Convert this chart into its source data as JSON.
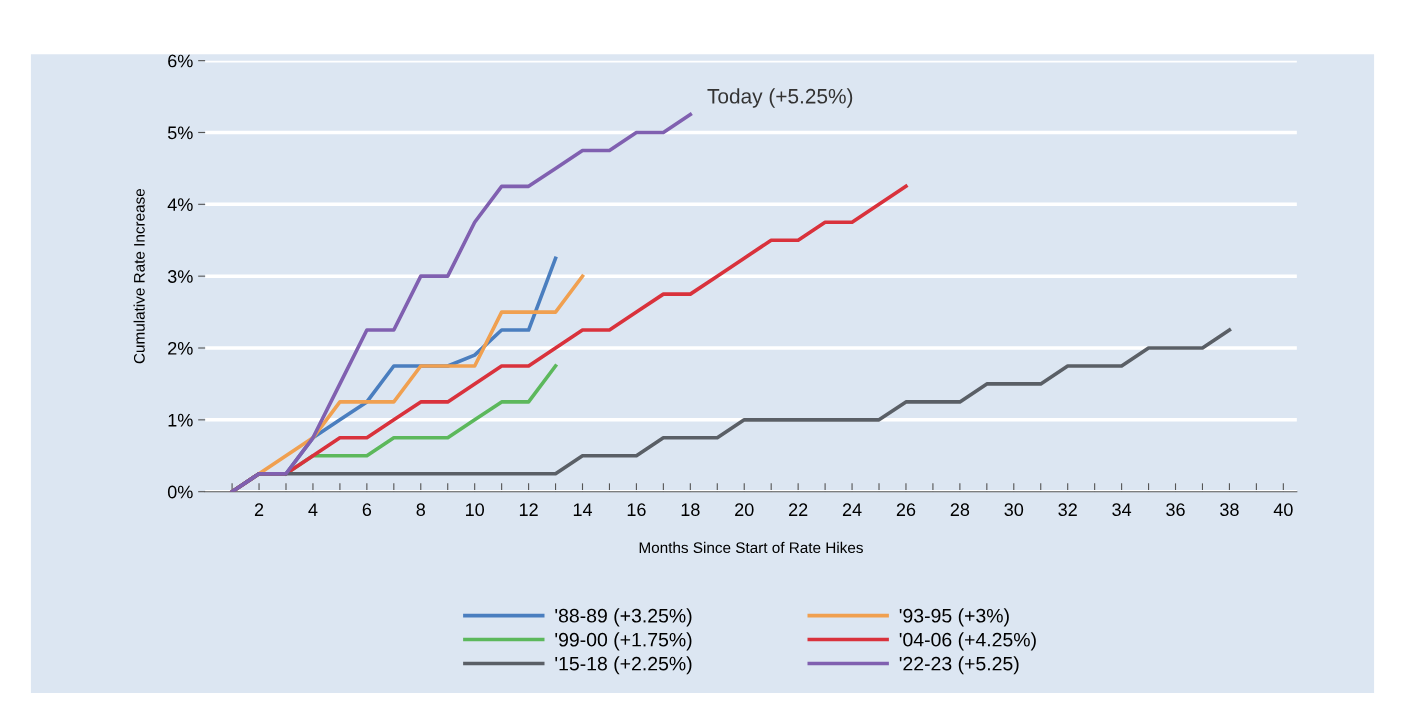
{
  "chart_data": {
    "type": "line",
    "xlabel": "Months Since Start of Rate Hikes",
    "ylabel": "Cumulative Rate Increase",
    "x": [
      1,
      2,
      3,
      4,
      5,
      6,
      7,
      8,
      9,
      10,
      11,
      12,
      13,
      14,
      15,
      16,
      17,
      18,
      19,
      20,
      21,
      22,
      23,
      24,
      25,
      26,
      27,
      28,
      29,
      30,
      31,
      32,
      33,
      34,
      35,
      36,
      37,
      38
    ],
    "series": [
      {
        "name": "'88-89 (+3.25%)",
        "color": "#4a7ebf",
        "values": [
          0,
          0.25,
          0.25,
          0.75,
          1.0,
          1.25,
          1.75,
          1.75,
          1.75,
          1.9,
          2.25,
          2.25,
          3.25,
          null,
          null,
          null,
          null,
          null,
          null,
          null,
          null,
          null,
          null,
          null,
          null,
          null,
          null,
          null,
          null,
          null,
          null,
          null,
          null,
          null,
          null,
          null,
          null,
          null
        ]
      },
      {
        "name": "'93-95 (+3%)",
        "color": "#f0a050",
        "values": [
          0,
          0.25,
          0.5,
          0.75,
          1.25,
          1.25,
          1.25,
          1.75,
          1.75,
          1.75,
          2.5,
          2.5,
          2.5,
          3.0,
          null,
          null,
          null,
          null,
          null,
          null,
          null,
          null,
          null,
          null,
          null,
          null,
          null,
          null,
          null,
          null,
          null,
          null,
          null,
          null,
          null,
          null,
          null,
          null
        ]
      },
      {
        "name": "'99-00 (+1.75%)",
        "color": "#5cb85c",
        "values": [
          null,
          null,
          0.25,
          0.5,
          0.5,
          0.5,
          0.75,
          0.75,
          0.75,
          1.0,
          1.25,
          1.25,
          1.75,
          null,
          null,
          null,
          null,
          null,
          null,
          null,
          null,
          null,
          null,
          null,
          null,
          null,
          null,
          null,
          null,
          null,
          null,
          null,
          null,
          null,
          null,
          null,
          null,
          null
        ]
      },
      {
        "name": "'04-06 (+4.25%)",
        "color": "#d9323c",
        "values": [
          0,
          0.25,
          0.25,
          0.5,
          0.75,
          0.75,
          1.0,
          1.25,
          1.25,
          1.5,
          1.75,
          1.75,
          2.0,
          2.25,
          2.25,
          2.5,
          2.75,
          2.75,
          3.0,
          3.25,
          3.5,
          3.5,
          3.75,
          3.75,
          4.0,
          4.25,
          null,
          null,
          null,
          null,
          null,
          null,
          null,
          null,
          null,
          null,
          null,
          null
        ]
      },
      {
        "name": "'15-18 (+2.25%)",
        "color": "#5a5f66",
        "values": [
          0,
          0.25,
          0.25,
          0.25,
          0.25,
          0.25,
          0.25,
          0.25,
          0.25,
          0.25,
          0.25,
          0.25,
          0.25,
          0.5,
          0.5,
          0.5,
          0.75,
          0.75,
          0.75,
          1.0,
          1.0,
          1.0,
          1.0,
          1.0,
          1.0,
          1.25,
          1.25,
          1.25,
          1.5,
          1.5,
          1.5,
          1.75,
          1.75,
          1.75,
          2.0,
          2.0,
          2.0,
          2.25
        ]
      },
      {
        "name": "'22-23 (+5.25)",
        "color": "#8060b0",
        "values": [
          0,
          0.25,
          0.25,
          0.75,
          1.5,
          2.25,
          2.25,
          3.0,
          3.0,
          3.75,
          4.25,
          4.25,
          4.5,
          4.75,
          4.75,
          5.0,
          5.0,
          5.25,
          null,
          null,
          null,
          null,
          null,
          null,
          null,
          null,
          null,
          null,
          null,
          null,
          null,
          null,
          null,
          null,
          null,
          null,
          null,
          null
        ]
      }
    ],
    "annotations": [
      {
        "text": "Today (+5.25%)",
        "x": 18,
        "y": 5.25
      }
    ],
    "xlim": [
      0,
      40.5
    ],
    "xticks": [
      {
        "value": 1,
        "label": null
      },
      2,
      {
        "value": 3,
        "label": null
      },
      4,
      {
        "value": 5,
        "label": null
      },
      6,
      {
        "value": 7,
        "label": null
      },
      8,
      {
        "value": 9,
        "label": null
      },
      10,
      {
        "value": 11,
        "label": null
      },
      12,
      {
        "value": 13,
        "label": null
      },
      14,
      {
        "value": 15,
        "label": null
      },
      16,
      {
        "value": 17,
        "label": null
      },
      18,
      {
        "value": 19,
        "label": null
      },
      20,
      {
        "value": 21,
        "label": null
      },
      22,
      {
        "value": 23,
        "label": null
      },
      24,
      {
        "value": 25,
        "label": null
      },
      26,
      {
        "value": 27,
        "label": null
      },
      28,
      {
        "value": 29,
        "label": null
      },
      30,
      {
        "value": 31,
        "label": null
      },
      32,
      {
        "value": 33,
        "label": null
      },
      34,
      {
        "value": 35,
        "label": null
      },
      36,
      {
        "value": 37,
        "label": null
      },
      38,
      {
        "value": 39,
        "label": null
      },
      40
    ],
    "ylim": [
      0,
      6
    ],
    "yticks": [
      {
        "value": 0,
        "label": "0%"
      },
      {
        "value": 1,
        "label": "1%"
      },
      {
        "value": 2,
        "label": "2%"
      },
      {
        "value": 3,
        "label": "3%"
      },
      {
        "value": 4,
        "label": "4%"
      },
      {
        "value": 5,
        "label": "5%"
      },
      {
        "value": 6,
        "label": "6%"
      }
    ],
    "grid": "y",
    "legend": "bottom",
    "marker": "none",
    "line_style": "solid"
  }
}
